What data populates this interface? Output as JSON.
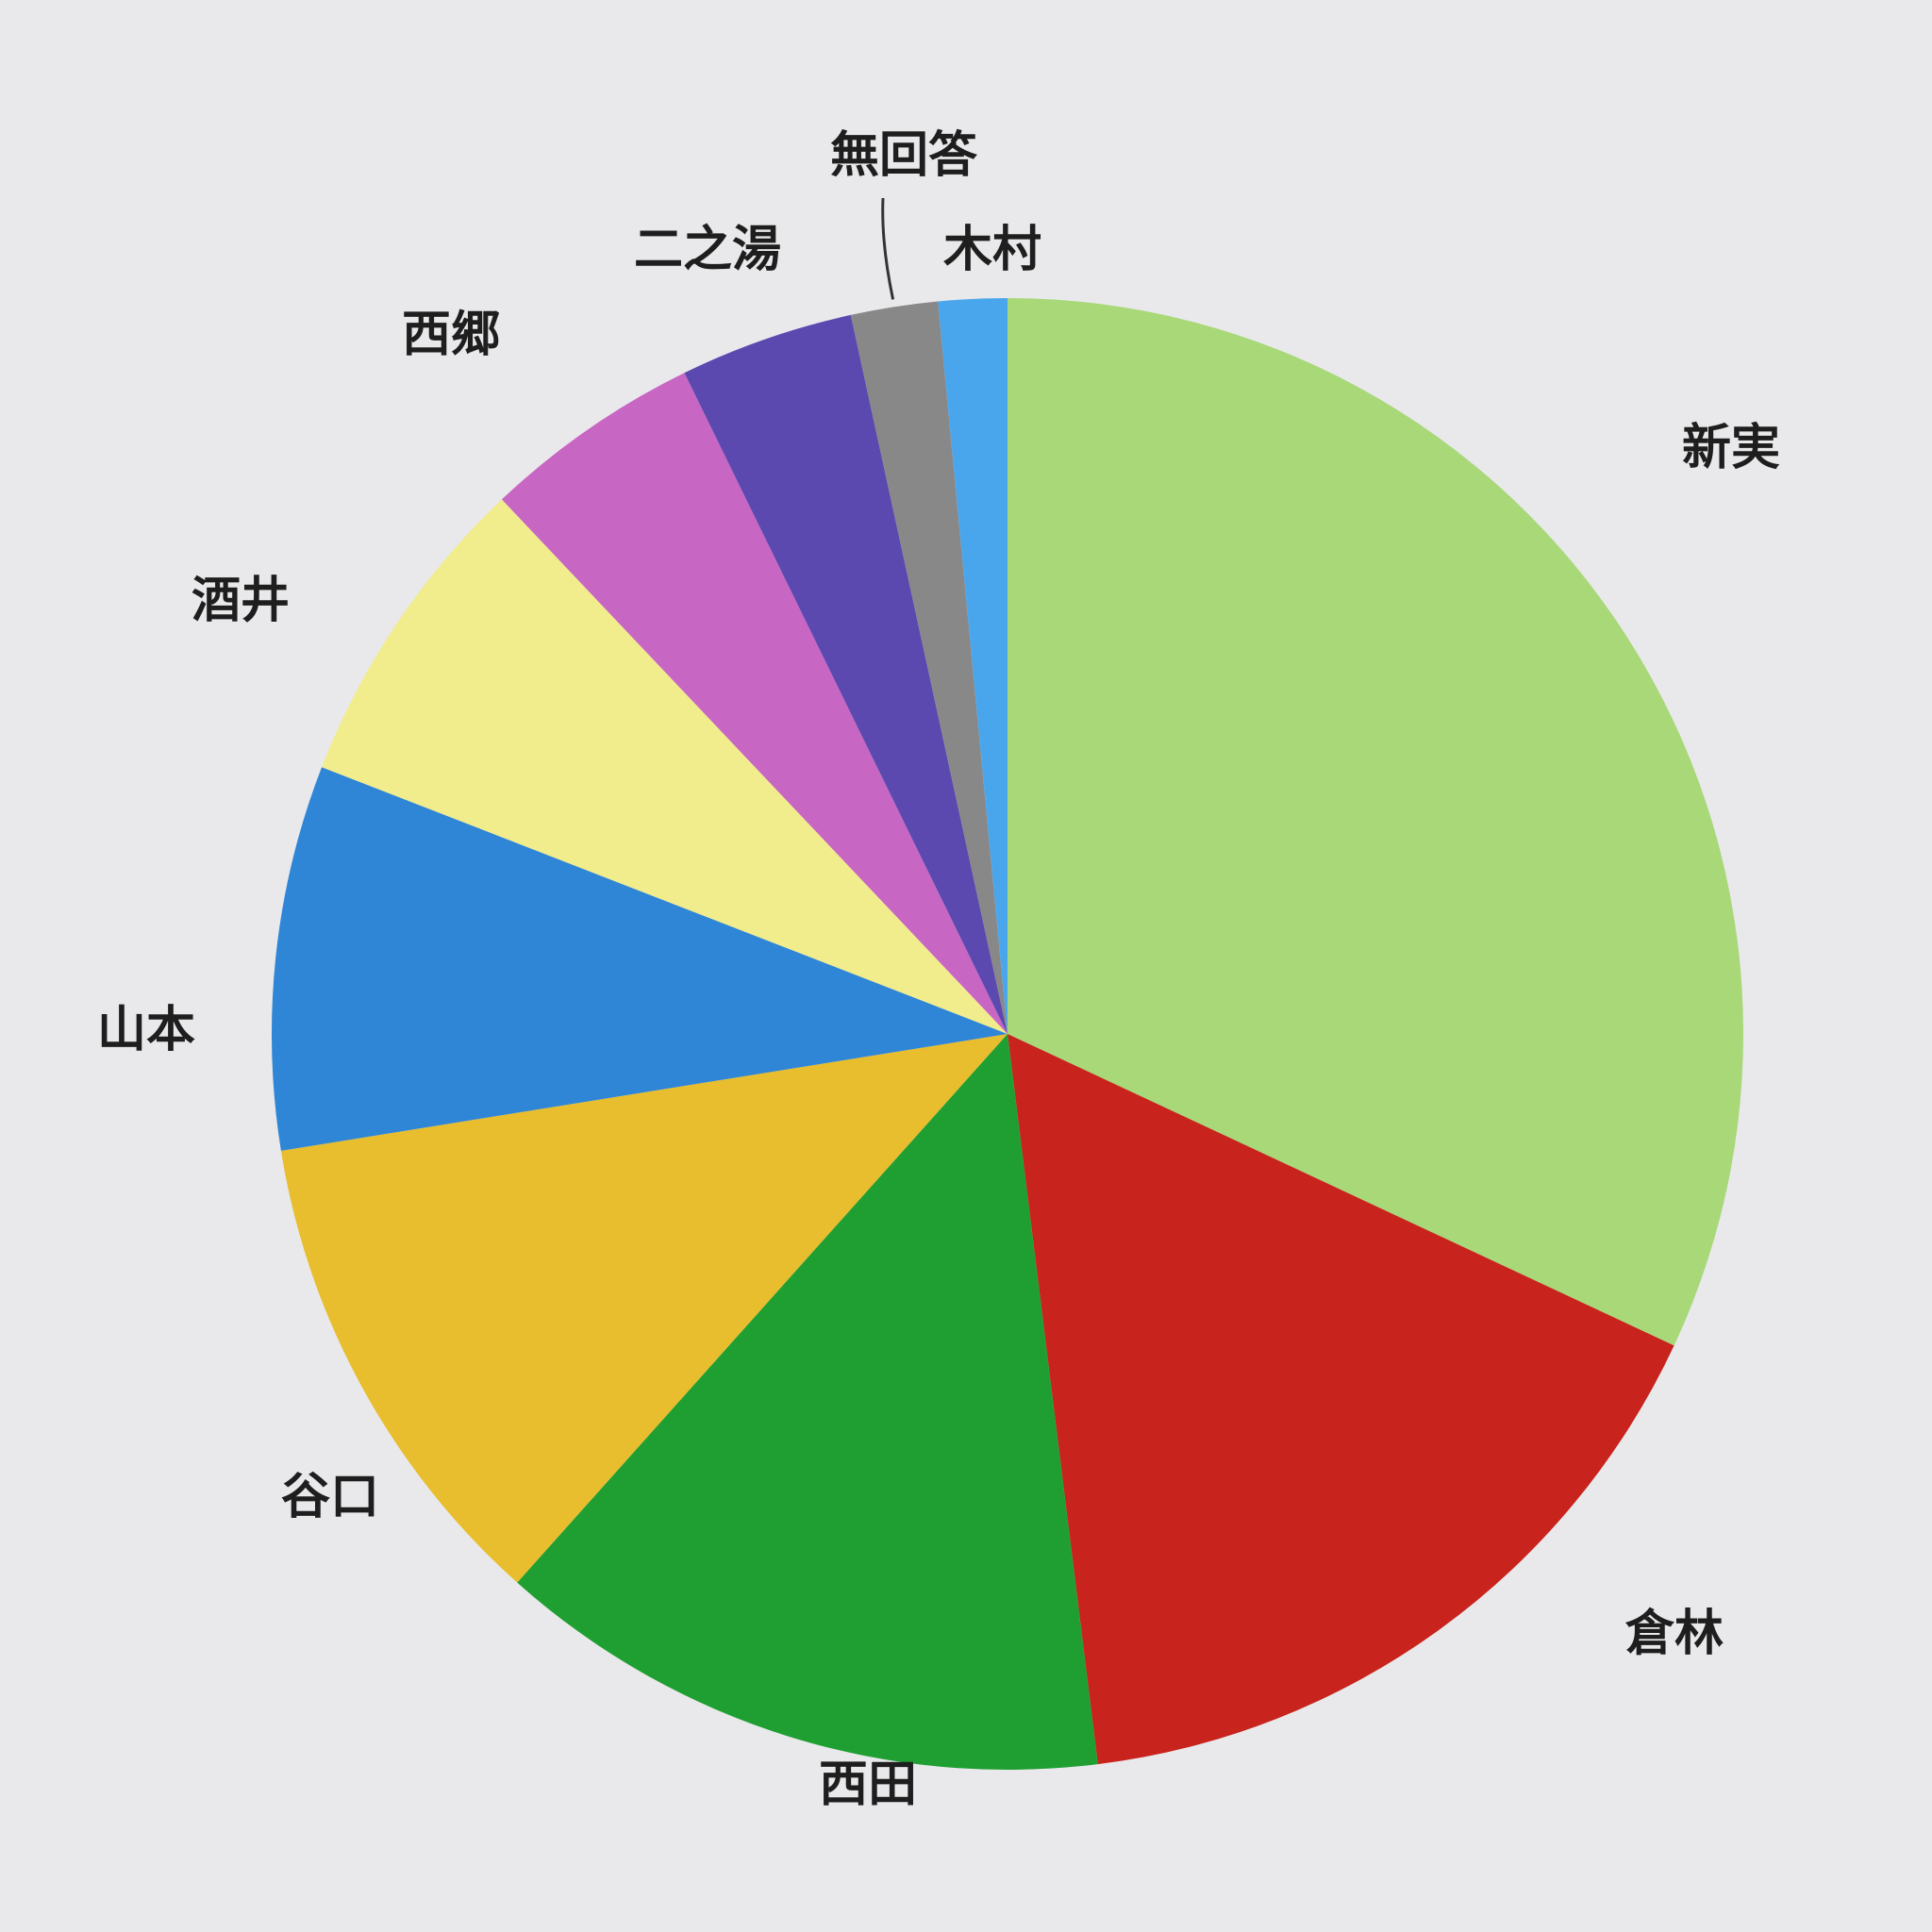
{
  "chart_data": {
    "type": "pie",
    "title": "",
    "start_angle_deg": 0,
    "direction": "clockwise",
    "legend": "none",
    "slices": [
      {
        "label": "新実",
        "value": 31.8,
        "color": "#a8d878"
      },
      {
        "label": "倉林",
        "value": 16.0,
        "color": "#c8231c"
      },
      {
        "label": "西田",
        "value": 13.5,
        "color": "#1f9f32"
      },
      {
        "label": "谷口",
        "value": 10.8,
        "color": "#e8bd2e"
      },
      {
        "label": "山本",
        "value": 8.4,
        "color": "#2f86d6"
      },
      {
        "label": "酒井",
        "value": 7.0,
        "color": "#f1ec8c"
      },
      {
        "label": "西郷",
        "value": 4.8,
        "color": "#c866c4"
      },
      {
        "label": "二之湯",
        "value": 3.8,
        "color": "#5b49b0"
      },
      {
        "label": "無回答",
        "value": 1.9,
        "color": "#888888"
      },
      {
        "label": "木村",
        "value": 1.5,
        "color": "#4aa6ec"
      }
    ]
  }
}
